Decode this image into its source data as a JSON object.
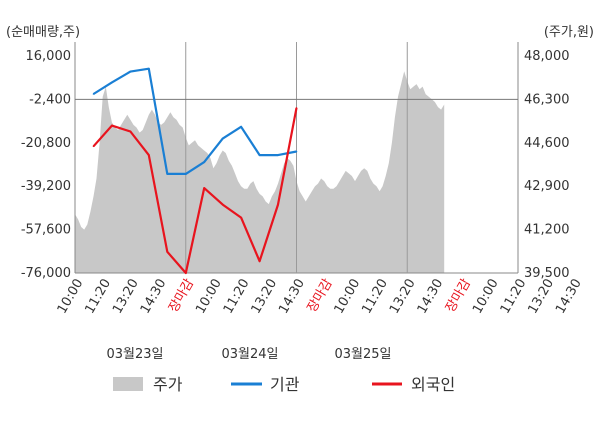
{
  "chart_data": {
    "type": "line",
    "left_axis_unit": "(순매매량,주)",
    "right_axis_unit": "(주가,원)",
    "left_ticks": [
      16000,
      -2400,
      -20800,
      -39200,
      -57600,
      -76000
    ],
    "left_tick_labels": [
      "16,000",
      "-2,400",
      "-20,800",
      "-39,200",
      "-57,600",
      "-76,000"
    ],
    "right_ticks": [
      48000,
      46300,
      44600,
      42900,
      41200,
      39500
    ],
    "right_tick_labels": [
      "48,000",
      "46,300",
      "44,600",
      "42,900",
      "41,200",
      "39,500"
    ],
    "ylim_left": [
      -76000,
      16000
    ],
    "ylim_right": [
      39500,
      48000
    ],
    "x_tick_labels": [
      {
        "label": "10:00",
        "red": false
      },
      {
        "label": "11:20",
        "red": false
      },
      {
        "label": "13:20",
        "red": false
      },
      {
        "label": "14:30",
        "red": false
      },
      {
        "label": "장마감",
        "red": true
      },
      {
        "label": "10:00",
        "red": false
      },
      {
        "label": "11:20",
        "red": false
      },
      {
        "label": "13:20",
        "red": false
      },
      {
        "label": "14:30",
        "red": false
      },
      {
        "label": "장마감",
        "red": true
      },
      {
        "label": "10:00",
        "red": false
      },
      {
        "label": "11:20",
        "red": false
      },
      {
        "label": "13:20",
        "red": false
      },
      {
        "label": "14:30",
        "red": false
      },
      {
        "label": "장마감",
        "red": true
      },
      {
        "label": "10:00",
        "red": false
      },
      {
        "label": "11:20",
        "red": false
      },
      {
        "label": "13:20",
        "red": false
      },
      {
        "label": "14:30",
        "red": false
      }
    ],
    "date_labels": [
      "03월23일",
      "03월24일",
      "03월25일"
    ],
    "reference_line_left": -2400,
    "series": [
      {
        "name": "주가",
        "kind": "area",
        "color": "#c8c8c8",
        "x": [
          0,
          0.5,
          1,
          1.5,
          2,
          2.5,
          3,
          3.5,
          4,
          4.5,
          5,
          5.5,
          6,
          6.5,
          7,
          7.5,
          8,
          8.5,
          9,
          9.5,
          10,
          10.5,
          11,
          11.5,
          12,
          12.5,
          13,
          13.5,
          14,
          14.5,
          15,
          15.5,
          16,
          16.5,
          17,
          17.5,
          18,
          18.5,
          19,
          19.5,
          20,
          20.5,
          21,
          21.5,
          22,
          22.5,
          23,
          23.5,
          24,
          24.5,
          25,
          25.5,
          26,
          26.5,
          27,
          27.5,
          28,
          28.5,
          29,
          29.5,
          30,
          30.5,
          31,
          31.5,
          32,
          32.5,
          33,
          33.5,
          34,
          34.5,
          35,
          35.5,
          36,
          36.5,
          37,
          37.5,
          38,
          38.5,
          39,
          39.5,
          40,
          40.5,
          41,
          41.5,
          42,
          42.5,
          43,
          43.5,
          44,
          44.5,
          45,
          45.5,
          46,
          46.5,
          47,
          47.5,
          48,
          48.5,
          49,
          49.5,
          50,
          50.5,
          51,
          51.5,
          52,
          52.5,
          53,
          53.5,
          54,
          54.5,
          55,
          55.5,
          56,
          56.5,
          57,
          57.5,
          58,
          58.5,
          59,
          59.5,
          60
        ],
        "values": [
          41800,
          41600,
          41300,
          41200,
          41400,
          41900,
          42500,
          43200,
          44600,
          46400,
          46800,
          46000,
          45400,
          45200,
          45100,
          45300,
          45500,
          45700,
          45500,
          45300,
          45200,
          45000,
          45100,
          45400,
          45700,
          45900,
          45700,
          45400,
          45300,
          45400,
          45600,
          45800,
          45600,
          45500,
          45300,
          45200,
          44800,
          44500,
          44600,
          44700,
          44500,
          44400,
          44300,
          44200,
          44000,
          43600,
          43800,
          44100,
          44300,
          44200,
          43900,
          43700,
          43400,
          43100,
          42900,
          42800,
          42800,
          43000,
          43100,
          42800,
          42600,
          42500,
          42300,
          42200,
          42500,
          42700,
          43000,
          43400,
          43800,
          44000,
          43900,
          43700,
          43100,
          42700,
          42500,
          42300,
          42500,
          42700,
          42900,
          43000,
          43200,
          43100,
          42900,
          42800,
          42800,
          42900,
          43100,
          43300,
          43500,
          43400,
          43300,
          43100,
          43300,
          43500,
          43600,
          43500,
          43200,
          43000,
          42900,
          42700,
          42900,
          43300,
          43800,
          44600,
          45600,
          46400,
          46900,
          47400,
          47000,
          46700,
          46800,
          46900,
          46700,
          46800,
          46500,
          46400,
          46300,
          46200,
          46000,
          45900,
          46100
        ],
        "end_x": 60
      },
      {
        "name": "기관",
        "kind": "line",
        "color": "#1a7fd4",
        "x": [
          3,
          6,
          9,
          12,
          15,
          18,
          21,
          24,
          27,
          30,
          33,
          36
        ],
        "values": [
          -100,
          4800,
          9400,
          10600,
          -34000,
          -34000,
          -29000,
          -19000,
          -14000,
          -26000,
          -26000,
          -24500
        ]
      },
      {
        "name": "외국인",
        "kind": "line",
        "color": "#e8141e",
        "x": [
          3,
          6,
          9,
          12,
          15,
          18,
          21,
          24,
          27,
          30,
          33,
          36
        ],
        "values": [
          -22300,
          -13500,
          -16000,
          -26000,
          -67000,
          -76000,
          -40000,
          -47000,
          -52500,
          -71000,
          -47000,
          -6000
        ]
      }
    ],
    "legend": {
      "placement": "bottom",
      "items": [
        "주가",
        "기관",
        "외국인"
      ]
    },
    "grid": false
  }
}
